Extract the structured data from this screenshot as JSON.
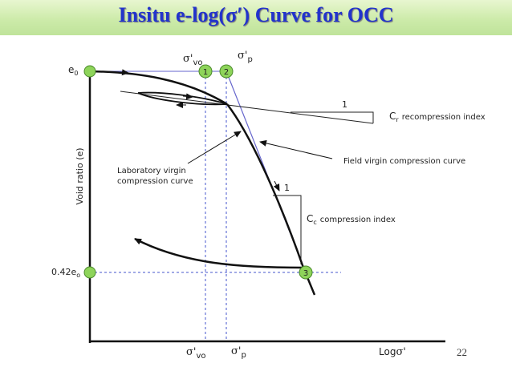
{
  "slide": {
    "title": "Insitu e-log(σ′) Curve for OCC",
    "page_number": "22"
  },
  "axes": {
    "ylabel": "Void ratio (e)",
    "xlabel_base": "Log",
    "xlabel_sym": "σ'"
  },
  "labels": {
    "e0_base": "e",
    "e0_sub": "0",
    "e042_base": "0.42e",
    "e042_sub": "o",
    "sigma_vo_sym": "σ'",
    "sigma_vo_sub": "vo",
    "sigma_p_sym": "σ'",
    "sigma_p_sub": "p",
    "point_1": "1",
    "point_2": "2",
    "point_3": "3",
    "slope_one_r": "1",
    "slope_one_c": "1",
    "cr_base": "C",
    "cr_sub": "r",
    "cr_text": "recompression index",
    "cc_base": "C",
    "cc_sub": "c",
    "cc_text": "compression index",
    "field_curve": "Field virgin compression curve",
    "lab_curve_line1": "Laboratory virgin",
    "lab_curve_line2": "compression curve"
  },
  "colors": {
    "title": "#2233cc",
    "marker_fill": "#8ed45a",
    "field_line": "#6666cc",
    "dashed": "#4455cc",
    "curve": "#111111"
  }
}
